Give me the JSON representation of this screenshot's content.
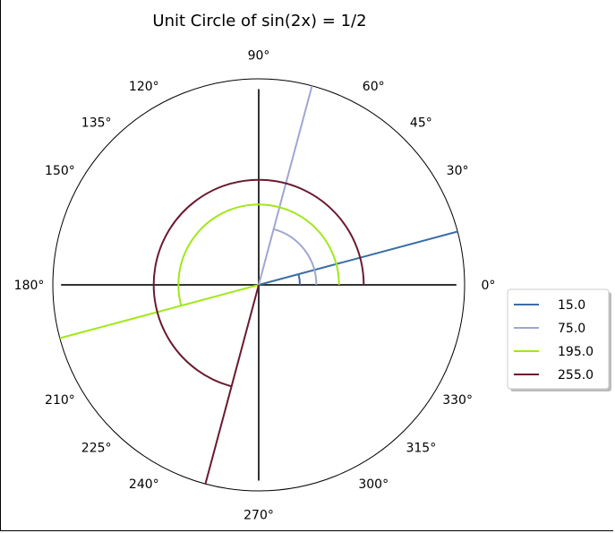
{
  "chart_data": {
    "type": "polar",
    "title": "Unit Circle of sin(2x) = 1/2",
    "theta_tick_labels": [
      {
        "deg": 0,
        "label": "0°"
      },
      {
        "deg": 30,
        "label": "30°"
      },
      {
        "deg": 45,
        "label": "45°"
      },
      {
        "deg": 60,
        "label": "60°"
      },
      {
        "deg": 90,
        "label": "90°"
      },
      {
        "deg": 120,
        "label": "120°"
      },
      {
        "deg": 135,
        "label": "135°"
      },
      {
        "deg": 150,
        "label": "150°"
      },
      {
        "deg": 180,
        "label": "180°"
      },
      {
        "deg": 210,
        "label": "210°"
      },
      {
        "deg": 225,
        "label": "225°"
      },
      {
        "deg": 240,
        "label": "240°"
      },
      {
        "deg": 270,
        "label": "270°"
      },
      {
        "deg": 300,
        "label": "300°"
      },
      {
        "deg": 315,
        "label": "315°"
      },
      {
        "deg": 330,
        "label": "330°"
      }
    ],
    "series": [
      {
        "name": "15.0",
        "angle_deg": 15,
        "color": "#3a6ea5",
        "arc_radius": 0.2
      },
      {
        "name": "75.0",
        "angle_deg": 75,
        "color": "#9fa6d4",
        "arc_radius": 0.28
      },
      {
        "name": "195.0",
        "angle_deg": 195,
        "color": "#a0e818",
        "arc_radius": 0.39
      },
      {
        "name": "255.0",
        "angle_deg": 255,
        "color": "#6b1a2e",
        "arc_radius": 0.51
      }
    ],
    "axis_lines_color": "#333333",
    "legend_position": "right"
  }
}
